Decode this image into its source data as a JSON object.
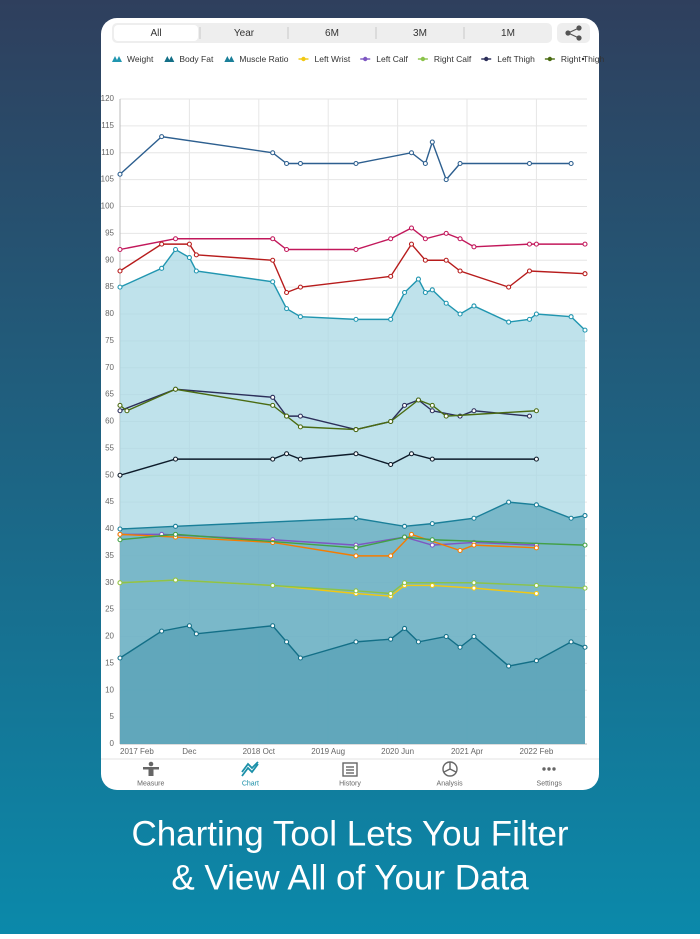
{
  "tabs": [
    "All",
    "Year",
    "6M",
    "3M",
    "1M"
  ],
  "selected_tab": 0,
  "chart_data": {
    "type": "line",
    "xlim": [
      "2017-02",
      "2022-09"
    ],
    "xticks": [
      {
        "value": "2017-02",
        "label": "2017 Feb"
      },
      {
        "value": "2017-12",
        "label": "Dec"
      },
      {
        "value": "2018-10",
        "label": "2018 Oct"
      },
      {
        "value": "2019-08",
        "label": "2019 Aug"
      },
      {
        "value": "2020-06",
        "label": "2020 Jun"
      },
      {
        "value": "2021-04",
        "label": "2021 Apr"
      },
      {
        "value": "2022-02",
        "label": "2022 Feb"
      }
    ],
    "ylim": [
      0,
      120
    ],
    "yticks": [
      0,
      5,
      10,
      15,
      20,
      25,
      30,
      35,
      40,
      45,
      50,
      55,
      60,
      65,
      70,
      75,
      80,
      85,
      90,
      95,
      100,
      105,
      110,
      115,
      120
    ],
    "grid": true,
    "series": [
      {
        "name": "Weight",
        "area": true,
        "color": "#2196b0",
        "fill": "#a9d8e4",
        "x": [
          "2017-02",
          "2017-08",
          "2017-10",
          "2017-12",
          "2018-01",
          "2018-12",
          "2019-02",
          "2019-04",
          "2019-12",
          "2020-05",
          "2020-07",
          "2020-09",
          "2020-10",
          "2020-11",
          "2021-01",
          "2021-03",
          "2021-05",
          "2021-10",
          "2022-01",
          "2022-02",
          "2022-07",
          "2022-09"
        ],
        "values": [
          85,
          88.5,
          92,
          90.5,
          88,
          86,
          81,
          79.5,
          79,
          79,
          84,
          86.5,
          84,
          84.5,
          82,
          80,
          81.5,
          78.5,
          79,
          80,
          79.5,
          77
        ]
      },
      {
        "name": "Body Fat",
        "area": true,
        "color": "#136f87",
        "fill": "#3a8aa0",
        "x": [
          "2017-02",
          "2017-08",
          "2017-12",
          "2018-01",
          "2018-12",
          "2019-02",
          "2019-04",
          "2019-12",
          "2020-05",
          "2020-07",
          "2020-09",
          "2021-01",
          "2021-03",
          "2021-05",
          "2021-10",
          "2022-02",
          "2022-07",
          "2022-09"
        ],
        "values": [
          16,
          21,
          22,
          20.5,
          22,
          19,
          16,
          19,
          19.5,
          21.5,
          19,
          20,
          18,
          20,
          14.5,
          15.5,
          19,
          18
        ]
      },
      {
        "name": "Muscle Ratio",
        "area": true,
        "color": "#1a7f99",
        "fill": "#63a9bd",
        "x": [
          "2017-02",
          "2017-10",
          "2019-12",
          "2020-07",
          "2020-11",
          "2021-05",
          "2021-10",
          "2022-02",
          "2022-07",
          "2022-09"
        ],
        "values": [
          40,
          40.5,
          42,
          40.5,
          41,
          42,
          45,
          44.5,
          42,
          42.5
        ]
      },
      {
        "name": "Left Wrist",
        "color": "#f2c811",
        "x": [
          "2017-02",
          "2017-10",
          "2018-12",
          "2019-12",
          "2020-05",
          "2020-07",
          "2020-11",
          "2021-05",
          "2022-02"
        ],
        "values": [
          30,
          30.5,
          29.5,
          28,
          27.5,
          29.5,
          29.5,
          29,
          28
        ]
      },
      {
        "name": "Left Calf",
        "color": "#7e57c2",
        "x": [
          "2017-02",
          "2017-08",
          "2018-12",
          "2019-12",
          "2020-07",
          "2020-11",
          "2021-05",
          "2022-02"
        ],
        "values": [
          39,
          39,
          38,
          37,
          38.5,
          37,
          37.5,
          37
        ]
      },
      {
        "name": "Right Calf",
        "color": "#8bc34a",
        "x": [
          "2017-02",
          "2017-10",
          "2018-12",
          "2019-12",
          "2020-05",
          "2020-07",
          "2021-05",
          "2022-02",
          "2022-09"
        ],
        "values": [
          30,
          30.5,
          29.5,
          28.5,
          28,
          30,
          30,
          29.5,
          29
        ]
      },
      {
        "name": "Left Thigh",
        "color": "#2c2f5a",
        "x": [
          "2017-02",
          "2017-10",
          "2018-12",
          "2019-02",
          "2019-04",
          "2019-12",
          "2020-05",
          "2020-07",
          "2020-09",
          "2020-11",
          "2021-03",
          "2021-05",
          "2022-01"
        ],
        "values": [
          62,
          66,
          64.5,
          61,
          61,
          58.5,
          60,
          63,
          64,
          62,
          61,
          62,
          61
        ]
      },
      {
        "name": "Right Thigh",
        "color": "#4a6b12",
        "x": [
          "2017-02",
          "2017-03",
          "2017-10",
          "2018-12",
          "2019-02",
          "2019-04",
          "2019-12",
          "2020-05",
          "2020-09",
          "2020-11",
          "2021-01",
          "2022-02"
        ],
        "values": [
          63,
          62,
          66,
          63,
          61,
          59,
          58.5,
          60,
          64,
          63,
          61,
          62
        ]
      },
      {
        "color": "#2d5f8f",
        "x": [
          "2017-02",
          "2017-08",
          "2018-12",
          "2019-02",
          "2019-04",
          "2019-12",
          "2020-08",
          "2020-10",
          "2020-11",
          "2021-01",
          "2021-03",
          "2022-01",
          "2022-07"
        ],
        "values": [
          106,
          113,
          110,
          108,
          108,
          108,
          110,
          108,
          112,
          105,
          108,
          108,
          108
        ]
      },
      {
        "color": "#c2185b",
        "x": [
          "2017-02",
          "2017-10",
          "2018-12",
          "2019-02",
          "2019-12",
          "2020-05",
          "2020-08",
          "2020-10",
          "2021-01",
          "2021-03",
          "2021-05",
          "2022-01",
          "2022-02",
          "2022-09"
        ],
        "values": [
          92,
          94,
          94,
          92,
          92,
          94,
          96,
          94,
          95,
          94,
          92.5,
          93,
          93,
          93
        ]
      },
      {
        "color": "#b71c1c",
        "x": [
          "2017-02",
          "2017-08",
          "2017-12",
          "2018-01",
          "2018-12",
          "2019-02",
          "2019-04",
          "2020-05",
          "2020-08",
          "2020-10",
          "2021-01",
          "2021-03",
          "2021-10",
          "2022-01",
          "2022-09"
        ],
        "values": [
          88,
          93,
          93,
          91,
          90,
          84,
          85,
          87,
          93,
          90,
          90,
          88,
          85,
          88,
          87.5
        ]
      },
      {
        "color": "#0d1b2a",
        "x": [
          "2017-02",
          "2017-10",
          "2018-12",
          "2019-02",
          "2019-04",
          "2019-12",
          "2020-05",
          "2020-08",
          "2020-11",
          "2022-02"
        ],
        "values": [
          50,
          53,
          53,
          54,
          53,
          54,
          52,
          54,
          53,
          53
        ]
      },
      {
        "color": "#f57c00",
        "x": [
          "2017-02",
          "2017-10",
          "2018-12",
          "2019-12",
          "2020-05",
          "2020-08",
          "2021-03",
          "2021-05",
          "2022-02"
        ],
        "values": [
          39,
          38.5,
          37.5,
          35,
          35,
          39,
          36,
          37,
          36.5
        ]
      },
      {
        "color": "#43a047",
        "x": [
          "2017-02",
          "2017-10",
          "2019-12",
          "2020-07",
          "2020-11",
          "2022-09"
        ],
        "values": [
          38,
          39,
          36.5,
          38.5,
          38,
          37
        ]
      }
    ]
  },
  "nav": [
    "Measure",
    "Chart",
    "History",
    "Analysis",
    "Settings"
  ],
  "selected_nav": 1,
  "caption": [
    "Charting Tool Lets You Filter",
    "& View All of Your Data"
  ]
}
